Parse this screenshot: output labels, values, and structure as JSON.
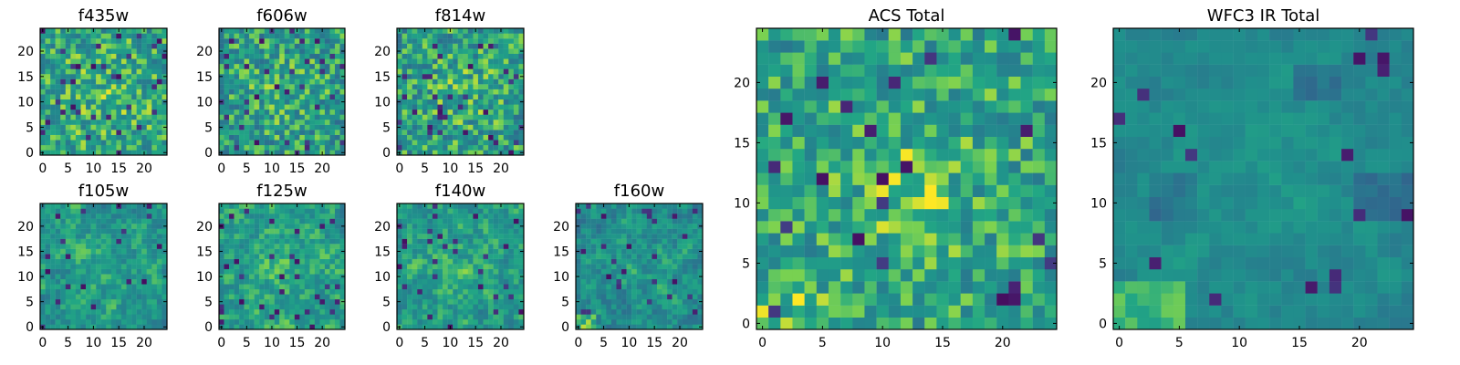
{
  "chart_data": [
    {
      "type": "heatmap",
      "title": "f435w",
      "x_ticks": [
        0,
        5,
        10,
        15,
        20
      ],
      "y_ticks": [
        0,
        5,
        10,
        15,
        20
      ],
      "xlim": [
        -0.5,
        24.5
      ],
      "ylim": [
        -0.5,
        24.5
      ],
      "grid": false,
      "colormap": "viridis",
      "shape": [
        25,
        25
      ],
      "pattern": "noise",
      "seed": 11,
      "mean": 0.7,
      "contrast": 0.22,
      "smooth": 0.0,
      "dark_fraction": 0.06
    },
    {
      "type": "heatmap",
      "title": "f606w",
      "x_ticks": [
        0,
        5,
        10,
        15,
        20
      ],
      "y_ticks": [
        0,
        5,
        10,
        15,
        20
      ],
      "xlim": [
        -0.5,
        24.5
      ],
      "ylim": [
        -0.5,
        24.5
      ],
      "grid": false,
      "colormap": "viridis",
      "shape": [
        25,
        25
      ],
      "pattern": "noise",
      "seed": 23,
      "mean": 0.66,
      "contrast": 0.23,
      "smooth": 0.0,
      "dark_fraction": 0.05
    },
    {
      "type": "heatmap",
      "title": "f814w",
      "x_ticks": [
        0,
        5,
        10,
        15,
        20
      ],
      "y_ticks": [
        0,
        5,
        10,
        15,
        20
      ],
      "xlim": [
        -0.5,
        24.5
      ],
      "ylim": [
        -0.5,
        24.5
      ],
      "grid": false,
      "colormap": "viridis",
      "shape": [
        25,
        25
      ],
      "pattern": "noise",
      "seed": 37,
      "mean": 0.67,
      "contrast": 0.23,
      "smooth": 0.0,
      "dark_fraction": 0.05
    },
    {
      "type": "heatmap",
      "title": "f105w",
      "x_ticks": [
        0,
        5,
        10,
        15,
        20
      ],
      "y_ticks": [
        0,
        5,
        10,
        15,
        20
      ],
      "xlim": [
        -0.5,
        24.5
      ],
      "ylim": [
        -0.5,
        24.5
      ],
      "grid": false,
      "colormap": "viridis",
      "shape": [
        25,
        25
      ],
      "pattern": "smooth",
      "seed": 41,
      "mean": 0.64,
      "contrast": 0.24,
      "smooth": 0.55,
      "dark_fraction": 0.04
    },
    {
      "type": "heatmap",
      "title": "f125w",
      "x_ticks": [
        0,
        5,
        10,
        15,
        20
      ],
      "y_ticks": [
        0,
        5,
        10,
        15,
        20
      ],
      "xlim": [
        -0.5,
        24.5
      ],
      "ylim": [
        -0.5,
        24.5
      ],
      "grid": false,
      "colormap": "viridis",
      "shape": [
        25,
        25
      ],
      "pattern": "smooth",
      "seed": 53,
      "mean": 0.68,
      "contrast": 0.24,
      "smooth": 0.55,
      "dark_fraction": 0.04
    },
    {
      "type": "heatmap",
      "title": "f140w",
      "x_ticks": [
        0,
        5,
        10,
        15,
        20
      ],
      "y_ticks": [
        0,
        5,
        10,
        15,
        20
      ],
      "xlim": [
        -0.5,
        24.5
      ],
      "ylim": [
        -0.5,
        24.5
      ],
      "grid": false,
      "colormap": "viridis",
      "shape": [
        25,
        25
      ],
      "pattern": "smooth",
      "seed": 67,
      "mean": 0.66,
      "contrast": 0.24,
      "smooth": 0.55,
      "dark_fraction": 0.04
    },
    {
      "type": "heatmap",
      "title": "f160w",
      "x_ticks": [
        0,
        5,
        10,
        15,
        20
      ],
      "y_ticks": [
        0,
        5,
        10,
        15,
        20
      ],
      "xlim": [
        -0.5,
        24.5
      ],
      "ylim": [
        -0.5,
        24.5
      ],
      "grid": false,
      "colormap": "viridis",
      "shape": [
        25,
        25
      ],
      "pattern": "smooth",
      "seed": 79,
      "mean": 0.6,
      "contrast": 0.24,
      "smooth": 0.55,
      "dark_fraction": 0.04
    },
    {
      "type": "heatmap",
      "title": "ACS Total",
      "x_ticks": [
        0,
        5,
        10,
        15,
        20
      ],
      "y_ticks": [
        0,
        5,
        10,
        15,
        20
      ],
      "xlim": [
        -0.5,
        24.5
      ],
      "ylim": [
        -0.5,
        24.5
      ],
      "grid": false,
      "colormap": "viridis",
      "shape": [
        25,
        25
      ],
      "pattern": "noise",
      "seed": 97,
      "mean": 0.69,
      "contrast": 0.2,
      "smooth": 0.0,
      "dark_fraction": 0.04
    },
    {
      "type": "heatmap",
      "title": "WFC3 IR Total",
      "x_ticks": [
        0,
        5,
        10,
        15,
        20
      ],
      "y_ticks": [
        0,
        5,
        10,
        15,
        20
      ],
      "xlim": [
        -0.5,
        24.5
      ],
      "ylim": [
        -0.5,
        24.5
      ],
      "grid": false,
      "colormap": "viridis",
      "shape": [
        25,
        25
      ],
      "pattern": "smooth",
      "seed": 131,
      "mean": 0.58,
      "contrast": 0.15,
      "smooth": 0.72,
      "dark_fraction": 0.03
    }
  ]
}
